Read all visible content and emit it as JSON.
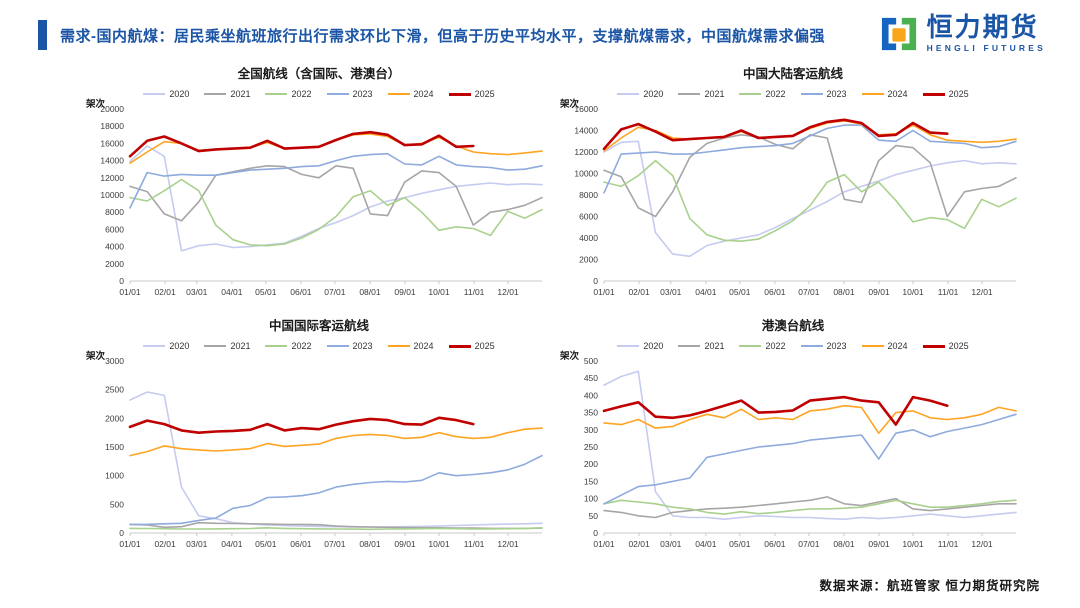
{
  "header": {
    "title": "需求-国内航煤：居民乘坐航班旅行出行需求环比下滑，但高于历史平均水平，支撑航煤需求，中国航煤需求偏强",
    "accent_color": "#1b55a5"
  },
  "logo": {
    "cn": "恒力期货",
    "en": "HENGLI FUTURES",
    "icon_colors": {
      "blue": "#1565c0",
      "green": "#4caf50",
      "orange": "#f9a61a"
    }
  },
  "footer": {
    "source": "数据来源：航班管家  恒力期货研究院"
  },
  "chart_data": [
    {
      "id": "national",
      "type": "line",
      "title": "全国航线（含国际、港澳台）",
      "ylabel": "架次",
      "ylim": [
        0,
        20000
      ],
      "ytick_step": 2000,
      "x_tick_labels": [
        "01/01",
        "02/01",
        "03/01",
        "04/01",
        "05/01",
        "06/01",
        "07/01",
        "08/01",
        "09/01",
        "10/01",
        "11/01",
        "12/01"
      ],
      "x_resolution": "semi-monthly 01/01 to 12/31",
      "legend_position": "top",
      "grid": false,
      "series": [
        {
          "name": "2020",
          "color": "#c6cbf0",
          "values": [
            13900,
            15700,
            14500,
            3500,
            4100,
            4300,
            3900,
            4000,
            4200,
            4400,
            5200,
            6100,
            6800,
            7600,
            8600,
            9300,
            9700,
            10200,
            10600,
            11000,
            11200,
            11400,
            11200,
            11300,
            11200
          ]
        },
        {
          "name": "2021",
          "color": "#a6a6a6",
          "values": [
            11000,
            10400,
            7800,
            7000,
            9200,
            12300,
            12700,
            13100,
            13400,
            13300,
            12400,
            12000,
            13400,
            13100,
            7800,
            7600,
            11500,
            12800,
            12600,
            11000,
            6500,
            8000,
            8300,
            8800,
            9700
          ]
        },
        {
          "name": "2022",
          "color": "#a9d18e",
          "values": [
            9700,
            9300,
            10500,
            11800,
            10500,
            6500,
            4800,
            4200,
            4100,
            4300,
            5000,
            6000,
            7500,
            9800,
            10500,
            8800,
            9700,
            8000,
            5900,
            6300,
            6100,
            5300,
            8100,
            7300,
            8300
          ]
        },
        {
          "name": "2023",
          "color": "#8faadc",
          "values": [
            8500,
            12600,
            12200,
            12400,
            12300,
            12300,
            12600,
            12900,
            13000,
            13100,
            13300,
            13400,
            14000,
            14500,
            14700,
            14800,
            13600,
            13500,
            14500,
            13500,
            13300,
            13200,
            12900,
            13000,
            13400
          ]
        },
        {
          "name": "2024",
          "color": "#ffa422",
          "values": [
            13700,
            15000,
            16200,
            16000,
            15200,
            15300,
            15400,
            15500,
            16100,
            15400,
            15500,
            15600,
            16400,
            17000,
            17100,
            16800,
            15800,
            16000,
            16700,
            15700,
            15000,
            14800,
            14700,
            14900,
            15100
          ]
        },
        {
          "name": "2025",
          "color": "#c00000",
          "values": [
            14500,
            16300,
            16800,
            16000,
            15100,
            15300,
            15400,
            15500,
            16300,
            15400,
            15500,
            15600,
            16400,
            17100,
            17300,
            17000,
            15800,
            15900,
            16900,
            15600,
            15700
          ]
        }
      ]
    },
    {
      "id": "mainland",
      "type": "line",
      "title": "中国大陆客运航线",
      "ylabel": "架次",
      "ylim": [
        0,
        16000
      ],
      "ytick_step": 2000,
      "x_tick_labels": [
        "01/01",
        "02/01",
        "03/01",
        "04/01",
        "05/01",
        "06/01",
        "07/01",
        "08/01",
        "09/01",
        "10/01",
        "11/01",
        "12/01"
      ],
      "x_resolution": "semi-monthly 01/01 to 12/31",
      "legend_position": "top",
      "grid": false,
      "series": [
        {
          "name": "2020",
          "color": "#c6cbf0",
          "values": [
            12000,
            12900,
            13000,
            4500,
            2500,
            2300,
            3300,
            3700,
            4000,
            4300,
            5000,
            5800,
            6600,
            7400,
            8300,
            8800,
            9300,
            9900,
            10300,
            10700,
            11000,
            11200,
            10900,
            11000,
            10900
          ]
        },
        {
          "name": "2021",
          "color": "#a6a6a6",
          "values": [
            10300,
            9700,
            6800,
            6000,
            8300,
            11500,
            12800,
            13300,
            13600,
            13400,
            12700,
            12300,
            13600,
            13300,
            7600,
            7300,
            11200,
            12600,
            12400,
            11000,
            6000,
            8300,
            8600,
            8800,
            9600
          ]
        },
        {
          "name": "2022",
          "color": "#a9d18e",
          "values": [
            9200,
            8800,
            9800,
            11200,
            9800,
            5800,
            4300,
            3800,
            3700,
            3900,
            4700,
            5600,
            7000,
            9200,
            9900,
            8300,
            9200,
            7500,
            5500,
            5900,
            5700,
            4900,
            7600,
            6900,
            7700
          ]
        },
        {
          "name": "2023",
          "color": "#8faadc",
          "values": [
            8200,
            11800,
            11900,
            12000,
            11800,
            11800,
            12000,
            12200,
            12400,
            12500,
            12600,
            12800,
            13500,
            14200,
            14500,
            14500,
            13100,
            13000,
            14000,
            13000,
            12900,
            12800,
            12400,
            12500,
            13000
          ]
        },
        {
          "name": "2024",
          "color": "#ffa422",
          "values": [
            12100,
            13300,
            14300,
            14000,
            13300,
            13200,
            13300,
            13400,
            13900,
            13300,
            13400,
            13500,
            14200,
            14700,
            14900,
            14600,
            13600,
            13700,
            14500,
            13600,
            13100,
            13000,
            12900,
            13000,
            13200
          ]
        },
        {
          "name": "2025",
          "color": "#c00000",
          "values": [
            12300,
            14100,
            14600,
            13900,
            13100,
            13200,
            13300,
            13400,
            14000,
            13300,
            13400,
            13500,
            14300,
            14800,
            15000,
            14700,
            13500,
            13600,
            14700,
            13800,
            13700
          ]
        }
      ]
    },
    {
      "id": "international",
      "type": "line",
      "title": "中国国际客运航线",
      "ylabel": "架次",
      "ylim": [
        0,
        3000
      ],
      "ytick_step": 500,
      "x_tick_labels": [
        "01/01",
        "02/01",
        "03/01",
        "04/01",
        "05/01",
        "06/01",
        "07/01",
        "08/01",
        "09/01",
        "10/01",
        "11/01",
        "12/01"
      ],
      "x_resolution": "semi-monthly 01/01 to 12/31",
      "legend_position": "top",
      "grid": false,
      "series": [
        {
          "name": "2020",
          "color": "#c6cbf0",
          "values": [
            2320,
            2460,
            2400,
            800,
            300,
            250,
            180,
            160,
            140,
            130,
            120,
            115,
            110,
            105,
            105,
            105,
            110,
            115,
            120,
            130,
            140,
            150,
            155,
            160,
            170
          ]
        },
        {
          "name": "2021",
          "color": "#a6a6a6",
          "values": [
            150,
            140,
            100,
            110,
            180,
            170,
            165,
            160,
            155,
            150,
            150,
            145,
            120,
            110,
            105,
            100,
            95,
            90,
            90,
            85,
            85,
            80,
            80,
            80,
            85
          ]
        },
        {
          "name": "2022",
          "color": "#a9d18e",
          "values": [
            80,
            78,
            75,
            70,
            70,
            72,
            75,
            78,
            90,
            80,
            75,
            72,
            70,
            68,
            65,
            70,
            72,
            75,
            80,
            75,
            70,
            72,
            75,
            80,
            90
          ]
        },
        {
          "name": "2023",
          "color": "#8faadc",
          "values": [
            150,
            152,
            160,
            170,
            220,
            260,
            430,
            480,
            620,
            630,
            650,
            700,
            800,
            850,
            880,
            900,
            890,
            920,
            1050,
            1000,
            1020,
            1050,
            1100,
            1200,
            1350
          ]
        },
        {
          "name": "2024",
          "color": "#ffa422",
          "values": [
            1350,
            1420,
            1520,
            1470,
            1450,
            1430,
            1450,
            1470,
            1560,
            1510,
            1530,
            1550,
            1650,
            1700,
            1720,
            1700,
            1650,
            1670,
            1750,
            1680,
            1650,
            1670,
            1750,
            1810,
            1830
          ]
        },
        {
          "name": "2025",
          "color": "#c00000",
          "values": [
            1850,
            1960,
            1900,
            1790,
            1750,
            1770,
            1780,
            1800,
            1900,
            1790,
            1830,
            1810,
            1890,
            1950,
            1990,
            1970,
            1900,
            1890,
            2010,
            1970,
            1900
          ]
        }
      ]
    },
    {
      "id": "hmt",
      "type": "line",
      "title": "港澳台航线",
      "ylabel": "架次",
      "ylim": [
        0,
        500
      ],
      "ytick_step": 50,
      "x_tick_labels": [
        "01/01",
        "02/01",
        "03/01",
        "04/01",
        "05/01",
        "06/01",
        "07/01",
        "08/01",
        "09/01",
        "10/01",
        "11/01",
        "12/01"
      ],
      "x_resolution": "semi-monthly 01/01 to 12/31",
      "legend_position": "top",
      "grid": false,
      "series": [
        {
          "name": "2020",
          "color": "#c6cbf0",
          "values": [
            430,
            455,
            470,
            120,
            50,
            45,
            45,
            40,
            45,
            50,
            48,
            45,
            45,
            42,
            40,
            45,
            42,
            45,
            50,
            55,
            50,
            45,
            50,
            55,
            60
          ]
        },
        {
          "name": "2021",
          "color": "#a6a6a6",
          "values": [
            65,
            60,
            50,
            45,
            60,
            65,
            70,
            72,
            75,
            80,
            85,
            90,
            95,
            105,
            85,
            80,
            90,
            100,
            70,
            65,
            70,
            75,
            80,
            85,
            85
          ]
        },
        {
          "name": "2022",
          "color": "#a9d18e",
          "values": [
            85,
            95,
            90,
            85,
            75,
            70,
            60,
            55,
            62,
            56,
            60,
            65,
            70,
            70,
            72,
            75,
            85,
            95,
            85,
            75,
            75,
            80,
            85,
            92,
            95
          ]
        },
        {
          "name": "2023",
          "color": "#8faadc",
          "values": [
            85,
            110,
            135,
            140,
            150,
            160,
            220,
            230,
            240,
            250,
            255,
            260,
            270,
            275,
            280,
            285,
            215,
            290,
            300,
            280,
            295,
            305,
            315,
            330,
            345
          ]
        },
        {
          "name": "2024",
          "color": "#ffa422",
          "values": [
            320,
            315,
            330,
            305,
            310,
            330,
            345,
            335,
            360,
            330,
            335,
            330,
            355,
            360,
            370,
            365,
            290,
            350,
            355,
            335,
            330,
            335,
            345,
            365,
            355
          ]
        },
        {
          "name": "2025",
          "color": "#c00000",
          "values": [
            355,
            368,
            380,
            338,
            335,
            342,
            355,
            370,
            385,
            350,
            352,
            356,
            385,
            390,
            395,
            385,
            380,
            315,
            395,
            385,
            370
          ]
        }
      ]
    }
  ]
}
